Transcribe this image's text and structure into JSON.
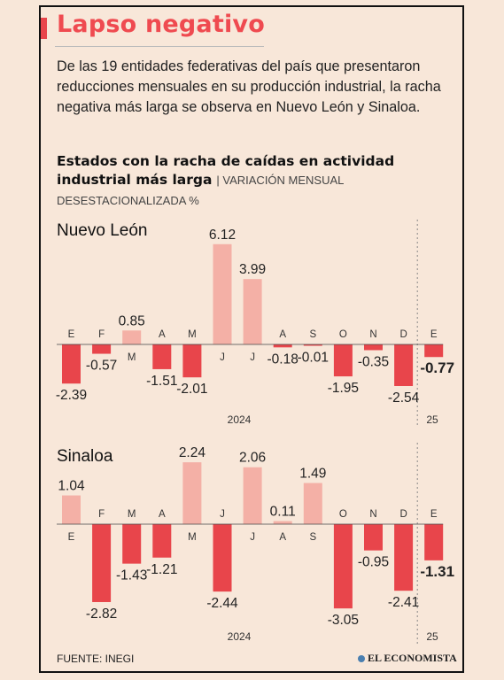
{
  "title": "Lapso negativo",
  "intro": "De las 19 entidades federativas del país que presentaron reducciones mensuales en su producción industrial, la racha negativa más larga se observa en Nuevo León y Sinaloa.",
  "subtitle_bold": "Estados con la racha de caídas en actividad industrial más larga",
  "subtitle_note": "| VARIACIÓN MENSUAL",
  "subtitle_note2": "DESESTACIONALIZADA %",
  "footer": "FUENTE: INEGI",
  "logo": "EL ECONOMISTA",
  "colors": {
    "positive": "#f4b0a6",
    "negative": "#e8454b",
    "accent": "#ef4a50"
  },
  "chart_data": [
    {
      "type": "bar",
      "title": "Nuevo León",
      "categories": [
        "E",
        "F",
        "M",
        "A",
        "M",
        "J",
        "J",
        "A",
        "S",
        "O",
        "N",
        "D",
        "E"
      ],
      "values": [
        -2.39,
        -0.57,
        0.85,
        -1.51,
        -2.01,
        6.12,
        3.99,
        -0.18,
        -0.01,
        -1.95,
        -0.35,
        -2.54,
        -0.77
      ],
      "value_labels": [
        "-2.39",
        "-0.57",
        "0.85",
        "-1.51",
        "-2.01",
        "6.12",
        "3.99",
        "-0.18",
        "-0.01",
        "-1.95",
        "-0.35",
        "-2.54",
        "-0.77"
      ],
      "year_labels": [
        "2024",
        "25"
      ]
    },
    {
      "type": "bar",
      "title": "Sinaloa",
      "categories": [
        "E",
        "F",
        "M",
        "A",
        "M",
        "J",
        "J",
        "A",
        "S",
        "O",
        "N",
        "D",
        "E"
      ],
      "values": [
        1.04,
        -2.82,
        -1.43,
        -1.21,
        2.24,
        -2.44,
        2.06,
        0.11,
        1.49,
        -3.05,
        -0.95,
        -2.41,
        -1.31
      ],
      "value_labels": [
        "1.04",
        "-2.82",
        "-1.43",
        "-1.21",
        "2.24",
        "-2.44",
        "2.06",
        "0.11",
        "1.49",
        "-3.05",
        "-0.95",
        "-2.41",
        "-1.31"
      ],
      "year_labels": [
        "2024",
        "25"
      ]
    }
  ]
}
